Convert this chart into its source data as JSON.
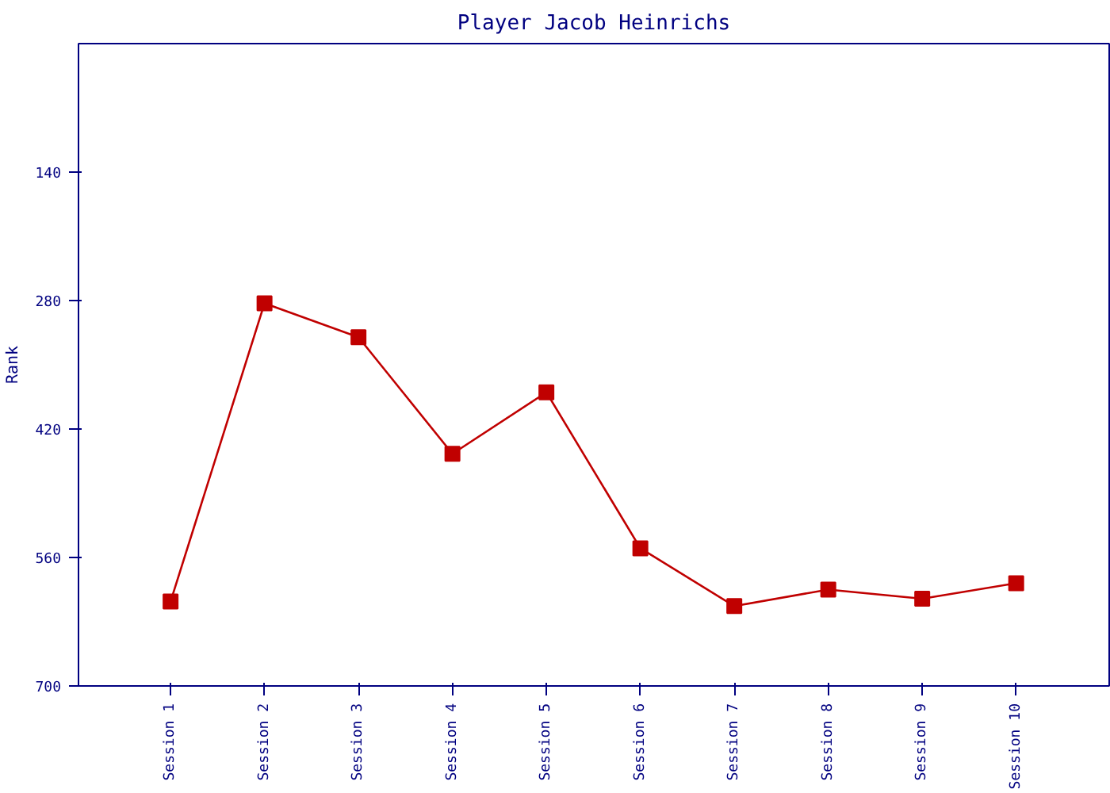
{
  "chart_data": {
    "type": "line",
    "title": "Player Jacob Heinrichs",
    "ylabel": "Rank",
    "categories": [
      "Session 1",
      "Session 2",
      "Session 3",
      "Session 4",
      "Session 5",
      "Session 6",
      "Session 7",
      "Session 8",
      "Session 9",
      "Session 10"
    ],
    "series": [
      {
        "color": "#c00000",
        "values": [
          608,
          283,
          320,
          447,
          380,
          550,
          613,
          595,
          605,
          588
        ]
      }
    ],
    "ylim": [
      700,
      0
    ],
    "yticks": [
      140,
      280,
      420,
      560,
      700
    ],
    "grid": false,
    "marker": "square",
    "line_style": "solid"
  }
}
